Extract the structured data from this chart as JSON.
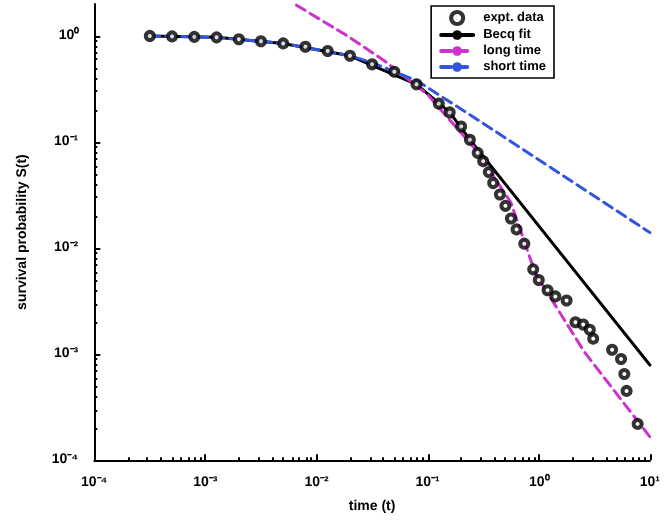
{
  "chart_data": {
    "type": "line",
    "xlabel": "time (t)",
    "ylabel": "survival probability S(t)",
    "log": "xy",
    "grid": false,
    "legend": "top right",
    "xlim": [
      0.0001,
      10
    ],
    "ylim": [
      0.0001,
      2
    ],
    "xticks": [
      {
        "value": 0.0001,
        "label": "10⁻⁴"
      },
      {
        "value": 0.001,
        "label": "10⁻³"
      },
      {
        "value": 0.01,
        "label": "10⁻²"
      },
      {
        "value": 0.1,
        "label": "10⁻¹"
      },
      {
        "value": 1,
        "label": "10⁰"
      },
      {
        "value": 10,
        "label": "10¹"
      }
    ],
    "yticks": [
      {
        "value": 0.0001,
        "label": "10⁻⁴"
      },
      {
        "value": 0.001,
        "label": "10⁻³"
      },
      {
        "value": 0.01,
        "label": "10⁻²"
      },
      {
        "value": 0.1,
        "label": "10⁻¹"
      },
      {
        "value": 1,
        "label": "10⁰"
      }
    ],
    "series": [
      {
        "name": "expt. data",
        "type": "scatter",
        "marker": "circle",
        "color": "#000000",
        "x": [
          0.000316,
          0.000501,
          0.000794,
          0.00126,
          0.002,
          0.00316,
          0.00501,
          0.00794,
          0.0126,
          0.02,
          0.0316,
          0.0501,
          0.0794,
          0.126,
          0.158,
          0.2,
          0.24,
          0.282,
          0.316,
          0.355,
          0.389,
          0.447,
          0.501,
          0.562,
          0.631,
          0.741,
          0.891,
          1,
          1.2,
          1.41,
          1.78,
          2.14,
          2.51,
          2.88,
          3.09,
          4.57,
          5.5,
          5.89,
          6.17,
          7.76
        ],
        "values": [
          1,
          0.99,
          0.98,
          0.97,
          0.93,
          0.89,
          0.85,
          0.79,
          0.72,
          0.65,
          0.54,
          0.46,
          0.35,
          0.23,
          0.19,
          0.14,
          0.105,
          0.079,
          0.066,
          0.052,
          0.041,
          0.032,
          0.025,
          0.019,
          0.015,
          0.011,
          0.0063,
          0.005,
          0.004,
          0.0035,
          0.0032,
          0.002,
          0.0019,
          0.0017,
          0.0014,
          0.0011,
          0.0009,
          0.00065,
          0.00045,
          0.00022
        ]
      },
      {
        "name": "Becq fit",
        "line_style": "solid",
        "color": "#000000",
        "x": [
          0.000316,
          0.00126,
          0.00501,
          0.02,
          0.0794,
          0.158,
          0.24,
          10
        ],
        "values": [
          1,
          0.97,
          0.85,
          0.65,
          0.35,
          0.19,
          0.105,
          0.00079
        ]
      },
      {
        "name": "long time",
        "line_style": "dashed",
        "color": "#cc33cc",
        "x": [
          0.0066,
          0.019,
          0.041,
          0.1,
          0.27,
          0.56,
          0.93,
          2.57,
          10
        ],
        "values": [
          1.95,
          1.0,
          0.58,
          0.28,
          0.085,
          0.027,
          0.0058,
          0.00105,
          0.000166
        ]
      },
      {
        "name": "short time",
        "line_style": "dashed",
        "color": "#3355dd",
        "x": [
          0.000316,
          0.00126,
          0.00501,
          0.02,
          0.0316,
          0.0794,
          0.316,
          10
        ],
        "values": [
          1,
          0.97,
          0.85,
          0.65,
          0.56,
          0.38,
          0.15,
          0.014
        ]
      }
    ]
  }
}
